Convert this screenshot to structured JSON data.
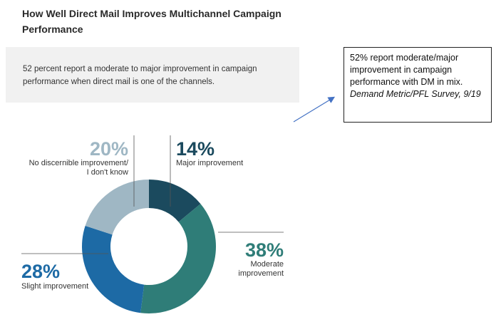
{
  "title": "How Well Direct Mail Improves Multichannel Campaign Performance",
  "summary": "52 percent report a moderate to major improvement in campaign performance when direct mail is one of the channels.",
  "note": {
    "text": "52% report moderate/major improvement in campaign performance with DM in mix.",
    "source": "Demand Metric/PFL Survey, 9/19"
  },
  "chart_data": {
    "type": "pie",
    "donut": true,
    "categories": [
      "Major improvement",
      "Moderate improvement",
      "Slight improvement",
      "No discernible improvement/ I don't know"
    ],
    "values": [
      14,
      38,
      28,
      20
    ],
    "value_labels": [
      "14%",
      "38%",
      "28%",
      "20%"
    ],
    "label_lines": [
      [
        "Major improvement"
      ],
      [
        "Moderate",
        "improvement"
      ],
      [
        "Slight improvement"
      ],
      [
        "No discernible improvement/",
        "I don't know"
      ]
    ],
    "colors": [
      "#1b4a5e",
      "#2f7d78",
      "#1d6aa5",
      "#9fb7c4"
    ],
    "title": "",
    "legend": "none"
  }
}
